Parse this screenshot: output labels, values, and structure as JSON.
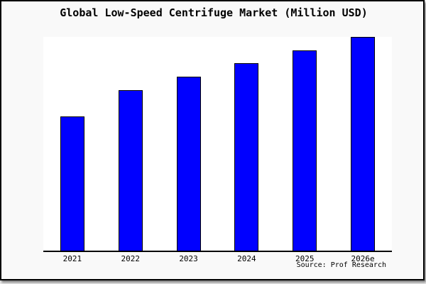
{
  "chart_data": {
    "type": "bar",
    "title": "Global Low-Speed Centrifuge Market (Million USD)",
    "categories": [
      "2021",
      "2022",
      "2023",
      "2024",
      "2025",
      "2026e"
    ],
    "values": [
      189,
      226,
      245,
      264,
      282,
      301
    ],
    "ylim": [
      0,
      301
    ],
    "value_note": "relative bar heights; no numeric y-axis labels shown in image",
    "xlabel": "",
    "ylabel": "",
    "grid": false,
    "legend": false,
    "y_axis_visible": false,
    "bar_color": "#0000ff",
    "bar_border_color": "#000000",
    "source": "Source: Prof Research"
  },
  "colors": {
    "frame_background": "#f9f9f9",
    "plot_background": "#ffffff",
    "frame_border": "#000000",
    "axis": "#000000",
    "text": "#000000",
    "page_background": "#ededed"
  }
}
